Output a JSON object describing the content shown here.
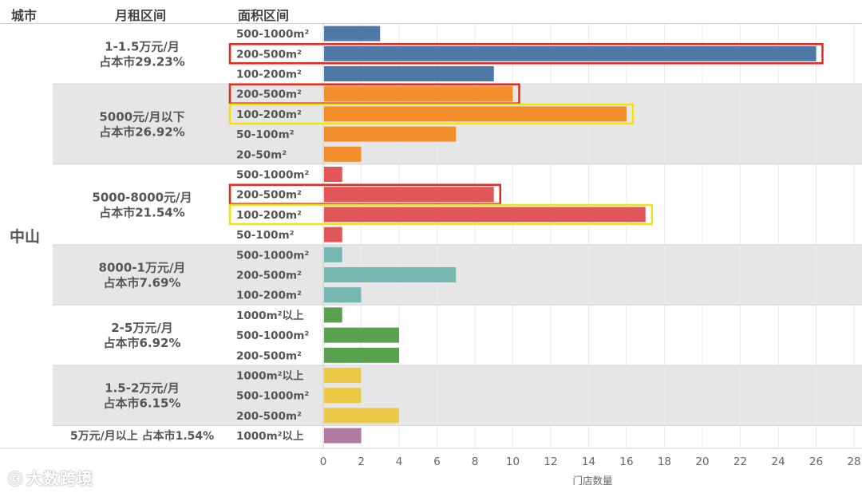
{
  "headers": {
    "city": "城市",
    "rent_range": "月租区间",
    "area_range": "面积区间"
  },
  "city": "中山",
  "watermark": "大数跨境",
  "chart_data": {
    "type": "bar",
    "orientation": "horizontal",
    "xlabel": "门店数量",
    "xlim": [
      0,
      28
    ],
    "xticks": [
      0,
      2,
      4,
      6,
      8,
      10,
      12,
      14,
      16,
      18,
      20,
      22,
      24,
      26,
      28
    ],
    "groups": [
      {
        "rent": "1-1.5万元/月",
        "share": "占本市29.23%",
        "color": "#4e79a7",
        "bars": [
          {
            "area": "500-1000m²",
            "value": 3
          },
          {
            "area": "200-500m²",
            "value": 26,
            "highlight": "red"
          },
          {
            "area": "100-200m²",
            "value": 9
          }
        ]
      },
      {
        "rent": "5000元/月以下",
        "share": "占本市26.92%",
        "color": "#f28e2b",
        "bars": [
          {
            "area": "200-500m²",
            "value": 10,
            "highlight": "red"
          },
          {
            "area": "100-200m²",
            "value": 16,
            "highlight": "yellow"
          },
          {
            "area": "50-100m²",
            "value": 7
          },
          {
            "area": "20-50m²",
            "value": 2
          }
        ]
      },
      {
        "rent": "5000-8000元/月",
        "share": "占本市21.54%",
        "color": "#e15759",
        "bars": [
          {
            "area": "500-1000m²",
            "value": 1
          },
          {
            "area": "200-500m²",
            "value": 9,
            "highlight": "red"
          },
          {
            "area": "100-200m²",
            "value": 17,
            "highlight": "yellow"
          },
          {
            "area": "50-100m²",
            "value": 1
          }
        ]
      },
      {
        "rent": "8000-1万元/月",
        "share": "占本市7.69%",
        "color": "#76b7b2",
        "bars": [
          {
            "area": "500-1000m²",
            "value": 1
          },
          {
            "area": "200-500m²",
            "value": 7
          },
          {
            "area": "100-200m²",
            "value": 2
          }
        ]
      },
      {
        "rent": "2-5万元/月",
        "share": "占本市6.92%",
        "color": "#59a14f",
        "bars": [
          {
            "area": "1000m²以上",
            "value": 1
          },
          {
            "area": "500-1000m²",
            "value": 4
          },
          {
            "area": "200-500m²",
            "value": 4
          }
        ]
      },
      {
        "rent": "1.5-2万元/月",
        "share": "占本市6.15%",
        "color": "#edc948",
        "bars": [
          {
            "area": "1000m²以上",
            "value": 2
          },
          {
            "area": "500-1000m²",
            "value": 2
          },
          {
            "area": "200-500m²",
            "value": 4
          }
        ]
      },
      {
        "rent": "5万元/月以上",
        "share": "占本市1.54%",
        "color": "#b07aa1",
        "bars": [
          {
            "area": "1000m²以上",
            "value": 2
          }
        ]
      }
    ],
    "highlight_colors": {
      "red": "#e8261c",
      "yellow": "#f5e400"
    },
    "band_colors": [
      "#ffffff",
      "#e6e6e6"
    ]
  }
}
